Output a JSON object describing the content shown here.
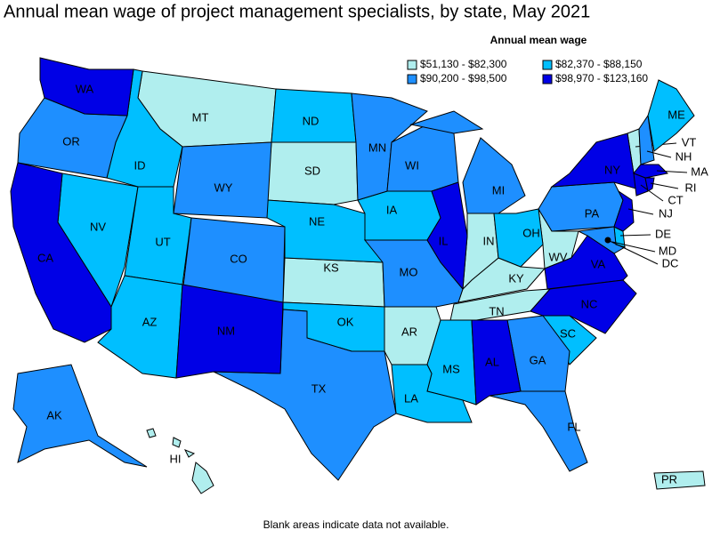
{
  "title": "Annual mean wage of project management specialists, by state, May 2021",
  "legend": {
    "title": "Annual mean wage",
    "classes": [
      {
        "label": "$51,130 - $82,300",
        "color": "#b0eeee",
        "states": [
          "MT",
          "SD",
          "KS",
          "AR",
          "TN",
          "KY",
          "IN",
          "WV",
          "VT",
          "HI",
          "PR"
        ]
      },
      {
        "label": "$82,370 - $88,150",
        "color": "#00bfff",
        "states": [
          "ID",
          "NV",
          "UT",
          "AZ",
          "ND",
          "NE",
          "IA",
          "OK",
          "OH",
          "SC",
          "MS",
          "LA",
          "ME",
          "DE"
        ]
      },
      {
        "label": "$90,200 - $98,500",
        "color": "#1e8fff",
        "states": [
          "OR",
          "WY",
          "CO",
          "TX",
          "MN",
          "WI",
          "MO",
          "MI",
          "GA",
          "FL",
          "AK",
          "PA",
          "NH",
          "MD"
        ]
      },
      {
        "label": "$98,970 - $123,160",
        "color": "#0000e6",
        "states": [
          "WA",
          "CA",
          "NM",
          "IL",
          "AL",
          "NY",
          "VA",
          "NC",
          "MA",
          "CT",
          "RI",
          "NJ",
          "DC"
        ]
      }
    ]
  },
  "footnote": "Blank areas indicate data not available."
}
